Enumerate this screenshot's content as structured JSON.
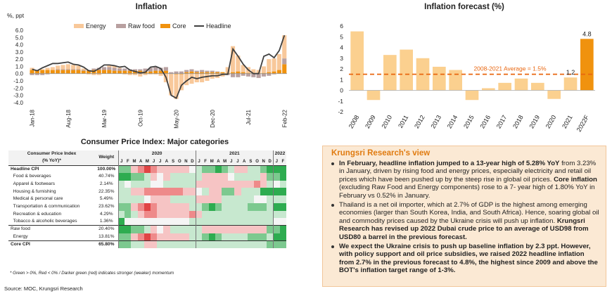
{
  "charts": {
    "inflation": {
      "title": "Inflation",
      "unit_label": "%, ppt",
      "legend": [
        "Energy",
        "Raw food",
        "Core",
        "Headline"
      ],
      "colors": {
        "energy": "#f8c89a",
        "raw_food": "#b8a0a0",
        "core": "#f0920e",
        "headline": "#404040"
      },
      "x_tick_labels": [
        "Jan-18",
        "Aug-18",
        "Mar-19",
        "Oct-19",
        "May-20",
        "Dec-20",
        "Jul-21",
        "Feb-22"
      ],
      "y_tick_labels": [
        "6.0",
        "5.0",
        "4.0",
        "3.0",
        "2.0",
        "1.0",
        "0.0",
        "-1.0",
        "-2.0",
        "-3.0",
        "-4.0"
      ]
    },
    "forecast": {
      "title": "Inflation forecast (%)",
      "average_label": "2008-2021 Average = 1.5%",
      "y_tick_labels": [
        "6",
        "5",
        "4",
        "3",
        "2",
        "1",
        "0",
        "-1",
        "-2"
      ],
      "data_labels": [
        "1.2",
        "4.8"
      ],
      "colors": {
        "bar": "#fbd08f",
        "forecast_bar": "#f0920e",
        "average": "#e9660f"
      }
    },
    "cpi": {
      "title": "Consumer Price Index: Major categories"
    }
  },
  "chart_data": [
    {
      "type": "bar",
      "stacked_with_line": true,
      "title": "Inflation",
      "ylabel": "%, ppt",
      "ylim": [
        -4,
        6
      ],
      "x_start": "Jan-18",
      "x_end": "Feb-22",
      "series": [
        {
          "name": "Energy",
          "values": [
            0.3,
            0.0,
            0.1,
            0.3,
            0.4,
            0.5,
            0.6,
            0.7,
            0.6,
            0.5,
            0.2,
            -0.1,
            -0.2,
            -0.2,
            0.0,
            0.2,
            0.3,
            0.1,
            -0.1,
            -0.2,
            -0.2,
            -0.4,
            -0.2,
            -0.1,
            -0.1,
            -0.3,
            -1.2,
            -3.0,
            -3.4,
            -2.2,
            -1.6,
            -1.4,
            -1.2,
            -1.2,
            -1.0,
            -0.7,
            -0.6,
            -0.4,
            0.8,
            3.6,
            2.2,
            1.0,
            0.8,
            0.5,
            0.4,
            0.9,
            1.8,
            1.8,
            2.2,
            3.2
          ]
        },
        {
          "name": "Raw food",
          "values": [
            -0.2,
            -0.2,
            -0.2,
            -0.1,
            0.0,
            0.1,
            0.1,
            0.1,
            0.1,
            0.1,
            0.1,
            0.1,
            0.2,
            0.3,
            0.4,
            0.4,
            0.4,
            0.3,
            0.3,
            0.2,
            0.2,
            0.2,
            0.4,
            0.5,
            0.5,
            0.4,
            0.5,
            0.2,
            0.3,
            0.3,
            0.3,
            0.3,
            0.2,
            0.3,
            0.2,
            0.2,
            0.1,
            0.0,
            -0.2,
            -0.5,
            -0.5,
            -0.3,
            -0.4,
            -0.5,
            -0.6,
            -0.4,
            -0.3,
            -0.1,
            0.0,
            0.8
          ]
        },
        {
          "name": "Core",
          "values": [
            0.5,
            0.5,
            0.5,
            0.5,
            0.5,
            0.5,
            0.5,
            0.5,
            0.5,
            0.5,
            0.4,
            0.4,
            0.5,
            0.5,
            0.5,
            0.5,
            0.4,
            0.4,
            0.4,
            0.4,
            0.4,
            0.4,
            0.3,
            0.3,
            0.4,
            0.4,
            0.4,
            0.0,
            -0.1,
            -0.1,
            0.2,
            0.3,
            0.2,
            0.2,
            0.2,
            0.2,
            0.2,
            0.2,
            0.1,
            0.2,
            0.3,
            0.2,
            0.1,
            0.1,
            0.1,
            0.1,
            0.2,
            0.3,
            0.5,
            1.3
          ]
        },
        {
          "name": "Headline",
          "values": [
            0.6,
            0.4,
            0.8,
            1.1,
            1.4,
            1.4,
            1.5,
            1.6,
            1.3,
            1.2,
            0.9,
            0.4,
            0.3,
            0.7,
            1.2,
            1.2,
            1.1,
            0.9,
            1.0,
            0.5,
            0.3,
            0.1,
            0.2,
            0.9,
            1.0,
            0.7,
            -0.5,
            -3.0,
            -3.4,
            -1.6,
            -1.0,
            -0.5,
            -0.7,
            -0.5,
            -0.4,
            -0.3,
            -0.3,
            -0.1,
            -0.1,
            3.4,
            2.4,
            1.3,
            0.5,
            0.0,
            0.0,
            2.4,
            2.7,
            2.2,
            3.2,
            5.3
          ]
        }
      ]
    },
    {
      "type": "bar",
      "title": "Inflation forecast (%)",
      "categories": [
        "2008",
        "2009",
        "2010",
        "2011",
        "2012",
        "2013",
        "2014",
        "2015",
        "2016",
        "2017",
        "2018",
        "2019",
        "2020",
        "2021",
        "2022F"
      ],
      "values": [
        5.5,
        -0.9,
        3.3,
        3.8,
        3.0,
        2.2,
        1.9,
        -0.9,
        0.2,
        0.7,
        1.1,
        0.7,
        -0.8,
        1.2,
        4.8
      ],
      "ylim": [
        -2,
        6
      ],
      "reference_line": {
        "label": "2008-2021 Average = 1.5%",
        "value": 1.5
      }
    },
    {
      "type": "table",
      "title": "Consumer Price Index: Major categories",
      "header": {
        "category": "Consumer Price Index",
        "category2": "(% YoY)*",
        "weight": "Weight",
        "years": [
          "2020",
          "2021",
          "2022"
        ]
      },
      "months": [
        "J",
        "F",
        "M",
        "A",
        "M",
        "J",
        "J",
        "A",
        "S",
        "O",
        "N",
        "D",
        "J",
        "F",
        "M",
        "A",
        "M",
        "J",
        "J",
        "A",
        "S",
        "O",
        "N",
        "D",
        "J",
        "F"
      ],
      "rows": [
        {
          "label": "Headline CPI",
          "weight": "100.00%",
          "bold": true,
          "cells": [
            "g",
            "g",
            "p",
            "r",
            "R",
            "r",
            "p",
            "p",
            "p",
            "p",
            "p",
            "n",
            "l",
            "g",
            "g",
            "G",
            "g",
            "l",
            "p",
            "p",
            "l",
            "l",
            "g",
            "G",
            "G",
            "G"
          ]
        },
        {
          "label": "Food & beverages",
          "weight": "40.74%",
          "cells": [
            "G",
            "G",
            "g",
            "g",
            "l",
            "p",
            "n",
            "p",
            "l",
            "l",
            "l",
            "l",
            "l",
            "p",
            "p",
            "p",
            "p",
            "n",
            "l",
            "l",
            "l",
            "l",
            "p",
            "g",
            "g",
            "G"
          ]
        },
        {
          "label": "Apparel & footwears",
          "weight": "2.14%",
          "cells": [
            "l",
            "n",
            "l",
            "l",
            "l",
            "n",
            "n",
            "l",
            "l",
            "l",
            "l",
            "l",
            "p",
            "p",
            "p",
            "p",
            "p",
            "p",
            "p",
            "p",
            "p",
            "r",
            "p",
            "l",
            "n",
            "l"
          ]
        },
        {
          "label": "Housing & furnishing",
          "weight": "22.35%",
          "cells": [
            "l",
            "l",
            "p",
            "p",
            "r",
            "r",
            "r",
            "r",
            "r",
            "r",
            "p",
            "p",
            "n",
            "l",
            "p",
            "p",
            "g",
            "g",
            "p",
            "l",
            "l",
            "l",
            "G",
            "G",
            "G",
            "G"
          ]
        },
        {
          "label": "Medical & personal care",
          "weight": "5.49%",
          "cells": [
            "l",
            "l",
            "l",
            "l",
            "n",
            "p",
            "p",
            "p",
            "l",
            "l",
            "l",
            "l",
            "p",
            "p",
            "p",
            "p",
            "l",
            "l",
            "l",
            "l",
            "l",
            "n",
            "n",
            "l",
            "l",
            "l"
          ]
        },
        {
          "label": "Transportation & communication",
          "weight": "23.62%",
          "cells": [
            "g",
            "g",
            "p",
            "r",
            "R",
            "r",
            "p",
            "p",
            "p",
            "p",
            "p",
            "l",
            "l",
            "g",
            "G",
            "g",
            "l",
            "l",
            "l",
            "l",
            "g",
            "g",
            "g",
            "l",
            "G",
            "G"
          ]
        },
        {
          "label": "Recreation & education",
          "weight": "4.29%",
          "cells": [
            "l",
            "g",
            "l",
            "p",
            "r",
            "r",
            "p",
            "p",
            "p",
            "p",
            "p",
            "r",
            "p",
            "l",
            "l",
            "l",
            "l",
            "l",
            "l",
            "l",
            "l",
            "l",
            "l",
            "l",
            "l",
            "l"
          ]
        },
        {
          "label": "Tobacco & alcoholic beverages",
          "weight": "1.36%",
          "cells": [
            "G",
            "n",
            "n",
            "n",
            "n",
            "n",
            "n",
            "n",
            "n",
            "n",
            "n",
            "l",
            "l",
            "l",
            "l",
            "l",
            "l",
            "l",
            "l",
            "l",
            "l",
            "l",
            "l",
            "l",
            "n",
            "n"
          ]
        },
        {
          "label": "Raw food",
          "weight": "20.40%",
          "group": true,
          "cells": [
            "G",
            "G",
            "g",
            "g",
            "l",
            "p",
            "n",
            "p",
            "l",
            "l",
            "l",
            "l",
            "l",
            "p",
            "p",
            "p",
            "p",
            "p",
            "p",
            "p",
            "p",
            "p",
            "p",
            "g",
            "g",
            "G"
          ]
        },
        {
          "label": "Energy",
          "weight": "13.81%",
          "cells": [
            "g",
            "g",
            "p",
            "r",
            "R",
            "r",
            "p",
            "p",
            "p",
            "p",
            "p",
            "l",
            "l",
            "g",
            "G",
            "g",
            "l",
            "l",
            "l",
            "l",
            "g",
            "g",
            "g",
            "l",
            "G",
            "G"
          ]
        },
        {
          "label": "Core CPI",
          "weight": "65.80%",
          "bold": true,
          "group": true,
          "cells": [
            "g",
            "g",
            "l",
            "l",
            "p",
            "p",
            "l",
            "l",
            "l",
            "l",
            "l",
            "l",
            "l",
            "l",
            "l",
            "l",
            "l",
            "l",
            "l",
            "l",
            "l",
            "l",
            "l",
            "g",
            "g",
            "g"
          ]
        }
      ],
      "cell_colors": {
        "G": "#2eac50",
        "g": "#7cc98f",
        "l": "#c7e8cf",
        "n": "#f5f5f5",
        "p": "#f6c4c4",
        "r": "#ee8a8a",
        "R": "#e04545"
      }
    }
  ],
  "notes": {
    "table_footnote": "* Green > 0%, Red < 0% / Darker green (red) indicates stronger (weaker) momentum",
    "source": "Source: MOC, Krungsri Research"
  },
  "view": {
    "title": "Krungsri Research's view",
    "items": [
      {
        "bold": "In February, headline inflation jumped to a 13-year high of 5.28% YoY",
        "text": " from 3.23% in January, driven by rising food and energy prices, especially electricity and retail oil prices which have been pushed up by the steep rise in global oil prices. ",
        "bold2": "Core inflation",
        "text2": " (excluding Raw Food and Energy components) rose to a 7- year high of 1.80% YoY in February vs 0.52% in January."
      },
      {
        "bold": "",
        "text": "Thailand is a net oil importer, which at 2.7% of GDP is the highest among emerging economies (larger than South Korea, India, and South Africa). Hence, soaring global oil and commodity prices caused by the Ukraine crisis will push up inflation. ",
        "bold2": "Krungsri Research has revised up 2022 Dubai crude price to an average of USD98 from USD80 a barrel in the previous forecast.",
        "text2": ""
      },
      {
        "bold": "We expect the Ukraine crisis to push up baseline inflation by 2.3 ppt. However, with policy support and oil price subsidies, we raised 2022 headline inflation from 2.7% in the previous forecast to 4.8%, the highest since 2009 and above the BOT's inflation target range of 1-3%.",
        "text": "",
        "bold2": "",
        "text2": ""
      }
    ]
  }
}
